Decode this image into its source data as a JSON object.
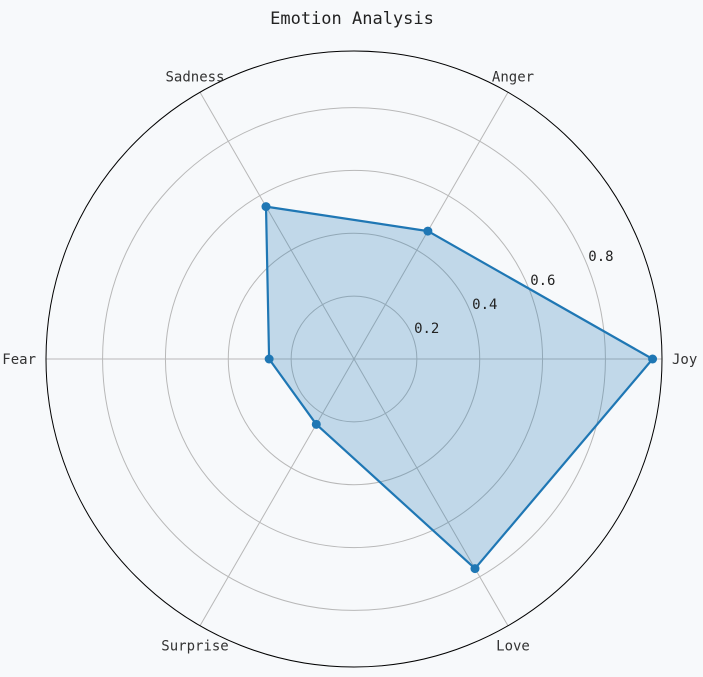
{
  "chart_data": {
    "type": "radar",
    "title": "Emotion Analysis",
    "categories": [
      "Joy",
      "Anger",
      "Sadness",
      "Fear",
      "Surprise",
      "Love"
    ],
    "series": [
      {
        "values": [
          0.95,
          0.47,
          0.56,
          0.27,
          0.24,
          0.77
        ]
      }
    ],
    "radial_ticks": [
      0.2,
      0.4,
      0.6,
      0.8
    ],
    "rlim": [
      0,
      0.98
    ],
    "grid": true,
    "colors": {
      "line": "#1f77b4",
      "fill": "#1f77b4",
      "grid": "#b8b8b8",
      "frame": "#000000",
      "background": "#f7f9fb"
    }
  }
}
